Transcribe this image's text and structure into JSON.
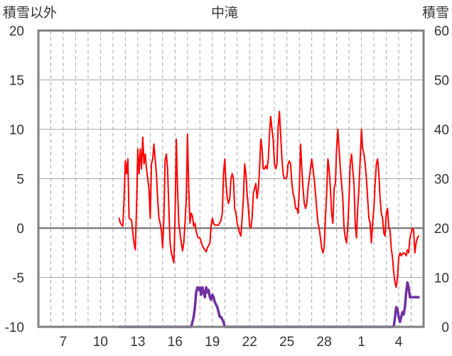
{
  "chart_data": {
    "type": "line",
    "title": "中滝",
    "y_left_label": "積雪以外",
    "y_right_label": "積雪",
    "ylim_left": [
      -10,
      20
    ],
    "ylim_right": [
      0,
      60
    ],
    "y_left_ticks": [
      "20",
      "15",
      "10",
      "5",
      "0",
      "-5",
      "-10"
    ],
    "y_right_ticks": [
      "60",
      "50",
      "40",
      "30",
      "20",
      "10",
      "0"
    ],
    "x_tick_labels": [
      {
        "label": "7",
        "day": 7
      },
      {
        "label": "10",
        "day": 10
      },
      {
        "label": "13",
        "day": 13
      },
      {
        "label": "16",
        "day": 16
      },
      {
        "label": "19",
        "day": 19
      },
      {
        "label": "22",
        "day": 22
      },
      {
        "label": "25",
        "day": 25
      },
      {
        "label": "28",
        "day": 28
      },
      {
        "label": "1",
        "day": 31
      },
      {
        "label": "4",
        "day": 34
      }
    ],
    "xlim": [
      5,
      36
    ],
    "grid": true,
    "colors": {
      "temperature": "#ff0000",
      "snow_depth": "#7030a0",
      "zero_line": "#7f7f7f",
      "grid": "#a6a6a6",
      "frame": "#7f7f7f"
    },
    "series": [
      {
        "axis": "left",
        "points": [
          [
            11.5,
            1.0
          ],
          [
            11.6,
            0.5
          ],
          [
            11.8,
            0.2
          ],
          [
            11.9,
            3.0
          ],
          [
            12.0,
            6.8
          ],
          [
            12.1,
            5.5
          ],
          [
            12.2,
            7.0
          ],
          [
            12.3,
            1.0
          ],
          [
            12.5,
            0.8
          ],
          [
            12.6,
            -0.5
          ],
          [
            12.7,
            -1.5
          ],
          [
            12.8,
            -2.2
          ],
          [
            12.9,
            2.0
          ],
          [
            13.0,
            8.0
          ],
          [
            13.1,
            5.5
          ],
          [
            13.2,
            8.0
          ],
          [
            13.3,
            6.0
          ],
          [
            13.4,
            9.2
          ],
          [
            13.5,
            6.5
          ],
          [
            13.6,
            7.5
          ],
          [
            13.7,
            6.0
          ],
          [
            13.8,
            5.0
          ],
          [
            13.9,
            4.0
          ],
          [
            14.0,
            1.0
          ],
          [
            14.1,
            6.5
          ],
          [
            14.2,
            7.0
          ],
          [
            14.3,
            8.5
          ],
          [
            14.4,
            7.0
          ],
          [
            14.5,
            5.5
          ],
          [
            14.6,
            3.0
          ],
          [
            14.7,
            1.0
          ],
          [
            14.8,
            0.5
          ],
          [
            14.9,
            -0.2
          ],
          [
            15.0,
            -2.0
          ],
          [
            15.1,
            1.0
          ],
          [
            15.2,
            6.8
          ],
          [
            15.3,
            7.5
          ],
          [
            15.4,
            6.0
          ],
          [
            15.5,
            2.0
          ],
          [
            15.6,
            -1.5
          ],
          [
            15.7,
            -2.5
          ],
          [
            15.8,
            -3.0
          ],
          [
            15.9,
            -3.5
          ],
          [
            16.0,
            1.0
          ],
          [
            16.1,
            9.0
          ],
          [
            16.2,
            4.0
          ],
          [
            16.3,
            0.5
          ],
          [
            16.4,
            -0.5
          ],
          [
            16.5,
            -1.5
          ],
          [
            16.6,
            -2.3
          ],
          [
            16.7,
            -1.5
          ],
          [
            16.8,
            0.5
          ],
          [
            16.9,
            3.0
          ],
          [
            17.0,
            9.5
          ],
          [
            17.1,
            4.0
          ],
          [
            17.2,
            0.5
          ],
          [
            17.3,
            1.5
          ],
          [
            17.4,
            1.2
          ],
          [
            17.5,
            0.2
          ],
          [
            17.6,
            0.5
          ],
          [
            17.7,
            -0.3
          ],
          [
            17.8,
            -0.8
          ],
          [
            17.9,
            -1.0
          ],
          [
            18.0,
            -1.0
          ],
          [
            18.2,
            -1.8
          ],
          [
            18.3,
            -2.0
          ],
          [
            18.5,
            -2.4
          ],
          [
            18.6,
            -2.0
          ],
          [
            18.8,
            -1.5
          ],
          [
            18.9,
            0.2
          ],
          [
            19.0,
            1.0
          ],
          [
            19.1,
            0.5
          ],
          [
            19.2,
            0.3
          ],
          [
            19.3,
            0.3
          ],
          [
            19.5,
            0.3
          ],
          [
            19.7,
            0.8
          ],
          [
            19.8,
            1.5
          ],
          [
            19.9,
            5.5
          ],
          [
            20.0,
            7.0
          ],
          [
            20.1,
            4.5
          ],
          [
            20.2,
            3.0
          ],
          [
            20.3,
            2.5
          ],
          [
            20.4,
            3.0
          ],
          [
            20.5,
            5.0
          ],
          [
            20.6,
            5.5
          ],
          [
            20.7,
            5.0
          ],
          [
            20.8,
            2.0
          ],
          [
            20.9,
            1.5
          ],
          [
            21.0,
            0.5
          ],
          [
            21.1,
            0.0
          ],
          [
            21.2,
            -0.5
          ],
          [
            21.3,
            -0.8
          ],
          [
            21.4,
            1.0
          ],
          [
            21.5,
            3.0
          ],
          [
            21.6,
            6.5
          ],
          [
            21.7,
            5.5
          ],
          [
            21.8,
            3.5
          ],
          [
            21.9,
            2.0
          ],
          [
            22.0,
            0.2
          ],
          [
            22.1,
            0.0
          ],
          [
            22.2,
            1.0
          ],
          [
            22.3,
            3.5
          ],
          [
            22.4,
            4.0
          ],
          [
            22.5,
            4.5
          ],
          [
            22.6,
            3.0
          ],
          [
            22.7,
            4.0
          ],
          [
            22.8,
            6.0
          ],
          [
            22.9,
            9.0
          ],
          [
            23.0,
            8.0
          ],
          [
            23.1,
            6.0
          ],
          [
            23.2,
            6.0
          ],
          [
            23.3,
            6.3
          ],
          [
            23.4,
            6.0
          ],
          [
            23.5,
            7.0
          ],
          [
            23.6,
            9.5
          ],
          [
            23.7,
            11.3
          ],
          [
            23.8,
            10.0
          ],
          [
            23.9,
            9.0
          ],
          [
            24.0,
            6.5
          ],
          [
            24.1,
            6.0
          ],
          [
            24.2,
            6.5
          ],
          [
            24.3,
            10.2
          ],
          [
            24.4,
            11.8
          ],
          [
            24.5,
            9.5
          ],
          [
            24.6,
            7.0
          ],
          [
            24.7,
            5.5
          ],
          [
            24.8,
            5.0
          ],
          [
            24.9,
            5.0
          ],
          [
            25.0,
            5.2
          ],
          [
            25.1,
            6.5
          ],
          [
            25.2,
            6.8
          ],
          [
            25.3,
            6.5
          ],
          [
            25.4,
            4.5
          ],
          [
            25.5,
            3.5
          ],
          [
            25.6,
            3.0
          ],
          [
            25.7,
            2.0
          ],
          [
            25.8,
            2.0
          ],
          [
            25.9,
            1.5
          ],
          [
            26.0,
            4.0
          ],
          [
            26.1,
            8.5
          ],
          [
            26.2,
            6.0
          ],
          [
            26.3,
            4.0
          ],
          [
            26.4,
            2.5
          ],
          [
            26.5,
            2.0
          ],
          [
            26.6,
            2.5
          ],
          [
            26.7,
            4.0
          ],
          [
            26.8,
            5.0
          ],
          [
            26.9,
            6.0
          ],
          [
            27.0,
            7.0
          ],
          [
            27.1,
            6.0
          ],
          [
            27.2,
            5.0
          ],
          [
            27.3,
            3.5
          ],
          [
            27.4,
            2.0
          ],
          [
            27.5,
            0.5
          ],
          [
            27.6,
            0.0
          ],
          [
            27.7,
            -1.0
          ],
          [
            27.8,
            -2.0
          ],
          [
            27.9,
            -2.5
          ],
          [
            28.0,
            -2.0
          ],
          [
            28.1,
            1.0
          ],
          [
            28.2,
            3.5
          ],
          [
            28.3,
            7.0
          ],
          [
            28.4,
            6.0
          ],
          [
            28.5,
            4.0
          ],
          [
            28.6,
            1.5
          ],
          [
            28.7,
            0.5
          ],
          [
            28.8,
            4.0
          ],
          [
            28.9,
            4.5
          ],
          [
            29.0,
            8.0
          ],
          [
            29.1,
            10.0
          ],
          [
            29.2,
            8.0
          ],
          [
            29.3,
            6.0
          ],
          [
            29.4,
            4.5
          ],
          [
            29.5,
            3.0
          ],
          [
            29.6,
            0.0
          ],
          [
            29.7,
            -1.0
          ],
          [
            29.8,
            -1.5
          ],
          [
            29.9,
            0.0
          ],
          [
            30.0,
            3.0
          ],
          [
            30.1,
            6.5
          ],
          [
            30.2,
            7.5
          ],
          [
            30.3,
            6.0
          ],
          [
            30.4,
            4.5
          ],
          [
            30.5,
            0.5
          ],
          [
            30.6,
            -1.0
          ],
          [
            30.7,
            2.0
          ],
          [
            30.8,
            4.0
          ],
          [
            30.9,
            7.0
          ],
          [
            31.0,
            10.0
          ],
          [
            31.1,
            8.0
          ],
          [
            31.2,
            7.5
          ],
          [
            31.3,
            6.5
          ],
          [
            31.4,
            5.0
          ],
          [
            31.5,
            3.0
          ],
          [
            31.6,
            1.0
          ],
          [
            31.7,
            0.5
          ],
          [
            31.8,
            -1.5
          ],
          [
            31.9,
            0.5
          ],
          [
            32.0,
            2.0
          ],
          [
            32.1,
            4.5
          ],
          [
            32.2,
            6.5
          ],
          [
            32.3,
            7.0
          ],
          [
            32.4,
            5.5
          ],
          [
            32.5,
            3.0
          ],
          [
            32.6,
            1.5
          ],
          [
            32.7,
            1.0
          ],
          [
            32.8,
            -0.5
          ],
          [
            32.9,
            -0.8
          ],
          [
            33.0,
            1.5
          ],
          [
            33.1,
            2.0
          ],
          [
            33.2,
            0.0
          ],
          [
            33.3,
            -0.2
          ],
          [
            33.4,
            -2.0
          ],
          [
            33.5,
            -3.0
          ],
          [
            33.6,
            -4.5
          ],
          [
            33.7,
            -5.5
          ],
          [
            33.8,
            -6.0
          ],
          [
            33.9,
            -5.0
          ],
          [
            34.0,
            -3.0
          ],
          [
            34.1,
            -2.5
          ],
          [
            34.2,
            -2.8
          ],
          [
            34.3,
            -2.6
          ],
          [
            34.4,
            -2.5
          ],
          [
            34.5,
            -2.6
          ],
          [
            34.6,
            -2.8
          ],
          [
            34.7,
            -2.2
          ],
          [
            34.8,
            -2.5
          ],
          [
            34.9,
            -1.0
          ],
          [
            35.0,
            -0.5
          ],
          [
            35.1,
            0.0
          ],
          [
            35.2,
            -0.2
          ],
          [
            35.3,
            -2.5
          ],
          [
            35.4,
            -1.5
          ],
          [
            35.5,
            -1.0
          ],
          [
            35.6,
            -0.8
          ]
        ]
      },
      {
        "axis": "right",
        "points": [
          [
            11.5,
            0.0
          ],
          [
            12.0,
            0.0
          ],
          [
            13.0,
            0.0
          ],
          [
            14.0,
            0.0
          ],
          [
            15.0,
            0.0
          ],
          [
            16.0,
            0.0
          ],
          [
            17.0,
            0.0
          ],
          [
            17.3,
            0.0
          ],
          [
            17.5,
            2.0
          ],
          [
            17.6,
            4.0
          ],
          [
            17.7,
            7.0
          ],
          [
            17.8,
            8.0
          ],
          [
            17.9,
            7.5
          ],
          [
            18.0,
            8.0
          ],
          [
            18.1,
            6.5
          ],
          [
            18.2,
            8.0
          ],
          [
            18.3,
            7.0
          ],
          [
            18.4,
            6.0
          ],
          [
            18.5,
            8.0
          ],
          [
            18.6,
            7.0
          ],
          [
            18.7,
            7.5
          ],
          [
            18.8,
            6.0
          ],
          [
            18.9,
            5.5
          ],
          [
            19.0,
            6.5
          ],
          [
            19.1,
            6.0
          ],
          [
            19.2,
            5.0
          ],
          [
            19.3,
            4.5
          ],
          [
            19.4,
            4.0
          ],
          [
            19.5,
            3.0
          ],
          [
            19.6,
            2.0
          ],
          [
            19.7,
            2.0
          ],
          [
            19.8,
            1.5
          ],
          [
            19.9,
            1.0
          ],
          [
            20.0,
            0.0
          ],
          [
            20.5,
            0.0
          ],
          [
            22.0,
            0.0
          ],
          [
            25.0,
            0.0
          ],
          [
            28.0,
            0.0
          ],
          [
            31.0,
            0.0
          ],
          [
            33.5,
            0.0
          ],
          [
            33.6,
            0.0
          ],
          [
            33.7,
            2.0
          ],
          [
            33.8,
            4.0
          ],
          [
            33.9,
            3.5
          ],
          [
            34.0,
            2.0
          ],
          [
            34.1,
            1.0
          ],
          [
            34.2,
            2.0
          ],
          [
            34.3,
            3.0
          ],
          [
            34.4,
            2.5
          ],
          [
            34.5,
            4.0
          ],
          [
            34.6,
            7.0
          ],
          [
            34.7,
            9.0
          ],
          [
            34.8,
            8.0
          ],
          [
            34.9,
            6.0
          ],
          [
            35.0,
            6.0
          ],
          [
            35.6,
            6.0
          ]
        ]
      }
    ]
  }
}
